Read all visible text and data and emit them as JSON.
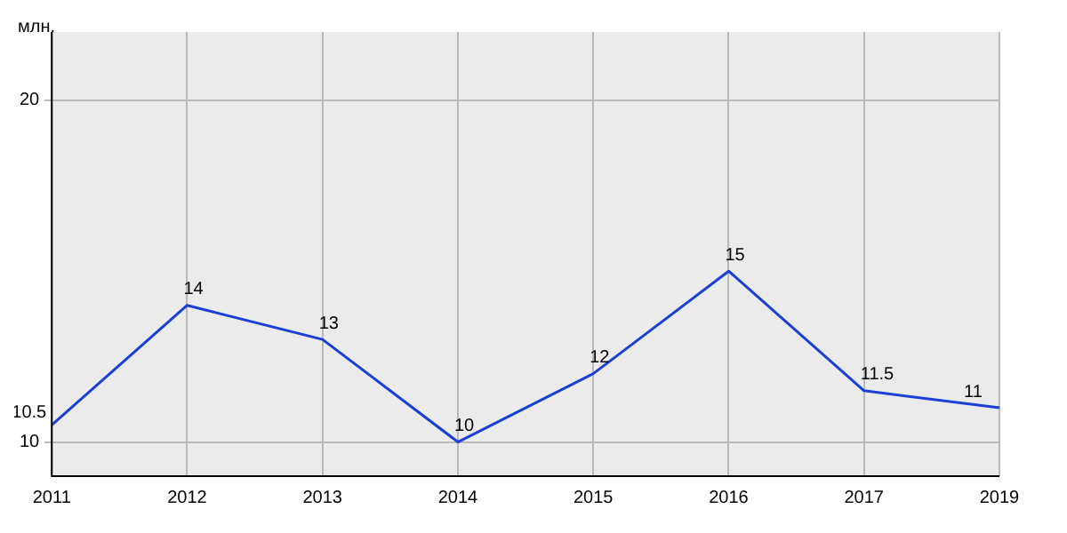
{
  "chart_data": {
    "type": "line",
    "ylabel": "млн.",
    "categories": [
      "2011",
      "2012",
      "2013",
      "2014",
      "2015",
      "2016",
      "2017",
      "2019"
    ],
    "series": [
      {
        "color": "#1a3fd6",
        "values": [
          10.5,
          14,
          13,
          10,
          12,
          15,
          11.5,
          11
        ]
      }
    ],
    "ylim": [
      9,
      22
    ],
    "yticks": [
      10,
      20
    ],
    "grid": true,
    "legend": false,
    "marker": "none",
    "line_style": "solid",
    "data_labels": true
  }
}
